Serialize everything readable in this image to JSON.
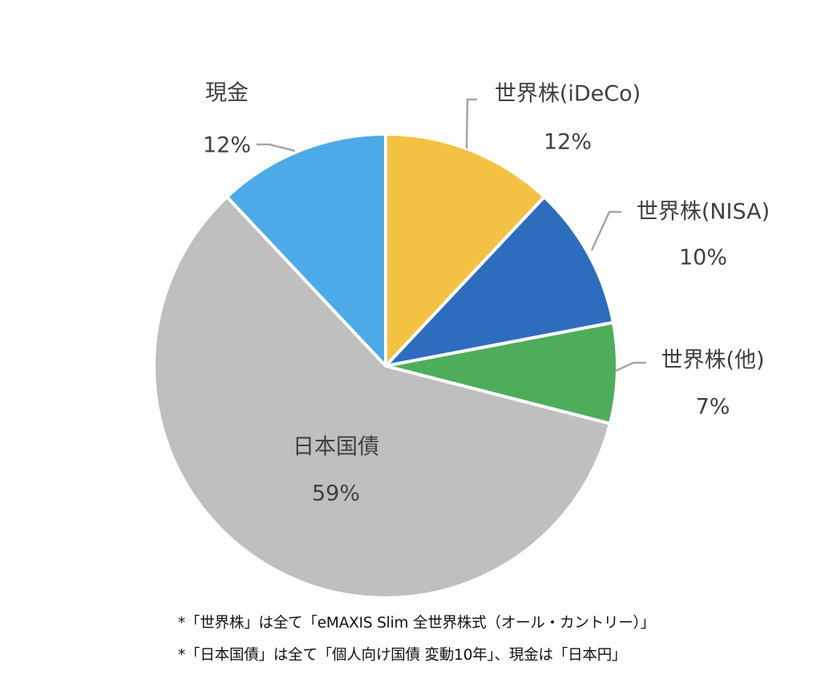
{
  "chart_data": {
    "type": "pie",
    "title": "",
    "start_angle_deg": 0,
    "direction": "clockwise",
    "slices": [
      {
        "label": "世界株(iDeCo)",
        "value": 12,
        "value_label": "12%",
        "color": "#F4C242"
      },
      {
        "label": "世界株(NISA)",
        "value": 10,
        "value_label": "10%",
        "color": "#2E6DBE"
      },
      {
        "label": "世界株(他)",
        "value": 7,
        "value_label": "7%",
        "color": "#4EAD5B"
      },
      {
        "label": "日本国債",
        "value": 59,
        "value_label": "59%",
        "color": "#BFBFBF"
      },
      {
        "label": "現金",
        "value": 12,
        "value_label": "12%",
        "color": "#4DAAE8"
      }
    ],
    "legend": "none"
  },
  "footnotes": [
    "*「世界株」は全て「eMAXIS Slim 全世界株式（オール・カントリー）」",
    "*「日本国債」は全て「個人向け国債 変動10年」、現金は「日本円」"
  ],
  "colors": {
    "label_text": "#404040",
    "leader_line": "#A6A6A6",
    "slice_border": "#FFFFFF"
  }
}
